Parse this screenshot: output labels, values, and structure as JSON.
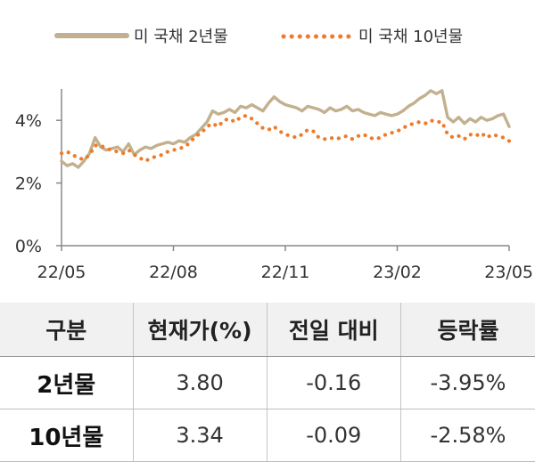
{
  "chart_data": {
    "type": "line",
    "legend_position": "top",
    "x": [
      "22/05",
      "22/08",
      "22/11",
      "23/02",
      "23/05"
    ],
    "y_ticks": [
      "0%",
      "2%",
      "4%"
    ],
    "ylim": [
      0,
      5
    ],
    "grid": false,
    "series": [
      {
        "name": "미 국채 2년물",
        "color": "#c2b08f",
        "style": "solid",
        "points": [
          [
            0.0,
            2.7
          ],
          [
            0.05,
            2.55
          ],
          [
            0.1,
            2.62
          ],
          [
            0.15,
            2.5
          ],
          [
            0.2,
            2.7
          ],
          [
            0.25,
            2.95
          ],
          [
            0.3,
            3.45
          ],
          [
            0.35,
            3.15
          ],
          [
            0.4,
            3.05
          ],
          [
            0.45,
            3.1
          ],
          [
            0.5,
            3.15
          ],
          [
            0.55,
            3.0
          ],
          [
            0.6,
            3.25
          ],
          [
            0.65,
            2.9
          ],
          [
            0.7,
            3.05
          ],
          [
            0.75,
            3.15
          ],
          [
            0.8,
            3.1
          ],
          [
            0.85,
            3.2
          ],
          [
            0.9,
            3.25
          ],
          [
            0.95,
            3.3
          ],
          [
            1.0,
            3.25
          ],
          [
            1.05,
            3.35
          ],
          [
            1.1,
            3.3
          ],
          [
            1.15,
            3.45
          ],
          [
            1.2,
            3.55
          ],
          [
            1.25,
            3.75
          ],
          [
            1.3,
            3.95
          ],
          [
            1.35,
            4.3
          ],
          [
            1.4,
            4.2
          ],
          [
            1.45,
            4.25
          ],
          [
            1.5,
            4.35
          ],
          [
            1.55,
            4.25
          ],
          [
            1.6,
            4.45
          ],
          [
            1.65,
            4.4
          ],
          [
            1.7,
            4.5
          ],
          [
            1.75,
            4.4
          ],
          [
            1.8,
            4.3
          ],
          [
            1.85,
            4.55
          ],
          [
            1.9,
            4.75
          ],
          [
            1.95,
            4.6
          ],
          [
            2.0,
            4.5
          ],
          [
            2.05,
            4.45
          ],
          [
            2.1,
            4.4
          ],
          [
            2.15,
            4.3
          ],
          [
            2.2,
            4.45
          ],
          [
            2.25,
            4.4
          ],
          [
            2.3,
            4.35
          ],
          [
            2.35,
            4.25
          ],
          [
            2.4,
            4.4
          ],
          [
            2.45,
            4.3
          ],
          [
            2.5,
            4.35
          ],
          [
            2.55,
            4.45
          ],
          [
            2.6,
            4.3
          ],
          [
            2.65,
            4.35
          ],
          [
            2.7,
            4.25
          ],
          [
            2.75,
            4.2
          ],
          [
            2.8,
            4.15
          ],
          [
            2.85,
            4.25
          ],
          [
            2.9,
            4.2
          ],
          [
            2.95,
            4.15
          ],
          [
            3.0,
            4.2
          ],
          [
            3.05,
            4.3
          ],
          [
            3.1,
            4.45
          ],
          [
            3.15,
            4.55
          ],
          [
            3.2,
            4.7
          ],
          [
            3.25,
            4.8
          ],
          [
            3.3,
            4.95
          ],
          [
            3.35,
            4.85
          ],
          [
            3.4,
            4.95
          ],
          [
            3.45,
            4.1
          ],
          [
            3.5,
            3.95
          ],
          [
            3.55,
            4.1
          ],
          [
            3.6,
            3.9
          ],
          [
            3.65,
            4.05
          ],
          [
            3.7,
            3.95
          ],
          [
            3.75,
            4.1
          ],
          [
            3.8,
            4.0
          ],
          [
            3.85,
            4.05
          ],
          [
            3.9,
            4.15
          ],
          [
            3.95,
            4.2
          ],
          [
            4.0,
            3.8
          ]
        ]
      },
      {
        "name": "미 국채 10년물",
        "color": "#ee7b2a",
        "style": "dotted",
        "points": [
          [
            0.0,
            2.95
          ],
          [
            0.05,
            3.0
          ],
          [
            0.1,
            2.9
          ],
          [
            0.15,
            2.8
          ],
          [
            0.2,
            2.75
          ],
          [
            0.25,
            2.9
          ],
          [
            0.3,
            3.2
          ],
          [
            0.35,
            3.2
          ],
          [
            0.4,
            3.1
          ],
          [
            0.45,
            3.05
          ],
          [
            0.5,
            3.0
          ],
          [
            0.55,
            2.95
          ],
          [
            0.6,
            3.05
          ],
          [
            0.65,
            2.9
          ],
          [
            0.7,
            2.8
          ],
          [
            0.75,
            2.7
          ],
          [
            0.8,
            2.8
          ],
          [
            0.85,
            2.85
          ],
          [
            0.9,
            2.9
          ],
          [
            0.95,
            3.0
          ],
          [
            1.0,
            3.05
          ],
          [
            1.05,
            3.1
          ],
          [
            1.1,
            3.15
          ],
          [
            1.15,
            3.3
          ],
          [
            1.2,
            3.5
          ],
          [
            1.25,
            3.6
          ],
          [
            1.3,
            3.8
          ],
          [
            1.35,
            3.9
          ],
          [
            1.4,
            3.8
          ],
          [
            1.45,
            4.0
          ],
          [
            1.5,
            4.05
          ],
          [
            1.55,
            3.95
          ],
          [
            1.6,
            4.1
          ],
          [
            1.65,
            4.15
          ],
          [
            1.7,
            4.05
          ],
          [
            1.75,
            3.9
          ],
          [
            1.8,
            3.75
          ],
          [
            1.85,
            3.7
          ],
          [
            1.9,
            3.8
          ],
          [
            1.95,
            3.65
          ],
          [
            2.0,
            3.55
          ],
          [
            2.05,
            3.5
          ],
          [
            2.1,
            3.45
          ],
          [
            2.15,
            3.55
          ],
          [
            2.2,
            3.7
          ],
          [
            2.25,
            3.65
          ],
          [
            2.3,
            3.45
          ],
          [
            2.35,
            3.4
          ],
          [
            2.4,
            3.45
          ],
          [
            2.45,
            3.4
          ],
          [
            2.5,
            3.45
          ],
          [
            2.55,
            3.5
          ],
          [
            2.6,
            3.4
          ],
          [
            2.65,
            3.5
          ],
          [
            2.7,
            3.55
          ],
          [
            2.75,
            3.45
          ],
          [
            2.8,
            3.4
          ],
          [
            2.85,
            3.45
          ],
          [
            2.9,
            3.55
          ],
          [
            2.95,
            3.6
          ],
          [
            3.0,
            3.65
          ],
          [
            3.05,
            3.75
          ],
          [
            3.1,
            3.85
          ],
          [
            3.15,
            3.9
          ],
          [
            3.2,
            3.95
          ],
          [
            3.25,
            3.9
          ],
          [
            3.3,
            4.0
          ],
          [
            3.35,
            3.95
          ],
          [
            3.4,
            3.95
          ],
          [
            3.45,
            3.55
          ],
          [
            3.5,
            3.45
          ],
          [
            3.55,
            3.5
          ],
          [
            3.6,
            3.4
          ],
          [
            3.65,
            3.55
          ],
          [
            3.7,
            3.5
          ],
          [
            3.75,
            3.6
          ],
          [
            3.8,
            3.45
          ],
          [
            3.85,
            3.55
          ],
          [
            3.9,
            3.5
          ],
          [
            3.95,
            3.45
          ],
          [
            4.0,
            3.34
          ]
        ]
      }
    ]
  },
  "table": {
    "headers": [
      "구분",
      "현재가(%)",
      "전일 대비",
      "등락률"
    ],
    "rows": [
      [
        "2년물",
        "3.80",
        "-0.16",
        "-3.95%"
      ],
      [
        "10년물",
        "3.34",
        "-0.09",
        "-2.58%"
      ]
    ]
  }
}
